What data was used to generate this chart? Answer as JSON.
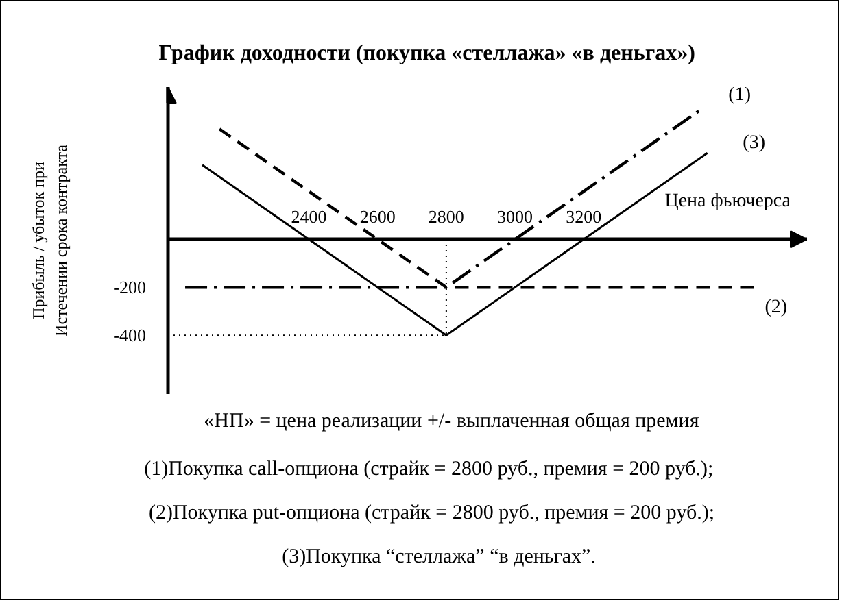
{
  "chart_data": {
    "type": "line",
    "title": "График доходности (покупка «стеллажа» «в деньгах»)",
    "xlabel": "Цена фьючерса",
    "ylabel": "Прибыль / убыток при\nИстечении срока контракта",
    "xlim": [
      1990,
      3850
    ],
    "xticks": [
      2400,
      2600,
      2800,
      3000,
      3200
    ],
    "ylim": [
      -645,
      635
    ],
    "yticks": [
      -400,
      -200
    ],
    "grid": false,
    "series": [
      {
        "name": "(1)",
        "color": "#000000",
        "line_style": "dashdot",
        "x": [
          2040,
          2800,
          3550
        ],
        "values": [
          -200,
          -200,
          550
        ]
      },
      {
        "name": "(2)",
        "color": "#000000",
        "line_style": "dashed",
        "x": [
          2140,
          2800,
          3700
        ],
        "values": [
          460,
          -200,
          -200
        ]
      },
      {
        "name": "(3)",
        "color": "#000000",
        "line_style": "solid",
        "x": [
          2090,
          2800,
          3560
        ],
        "values": [
          310,
          -400,
          360
        ]
      },
      {
        "color": "#000000",
        "line_style": "dotted",
        "x": [
          1990,
          2800,
          2800
        ],
        "values": [
          -400,
          -400,
          0
        ]
      }
    ],
    "annotations": [
      "«НП» = цена реализации +/- выплаченная общая премия",
      "(1)Покупка call-опциона (страйк = 2800 руб., премия = 200 руб.);",
      "(2)Покупка put-опциона (страйк = 2800 руб., премия = 200 руб.);",
      "(3)Покупка “стеллажа” “в деньгах”."
    ]
  }
}
